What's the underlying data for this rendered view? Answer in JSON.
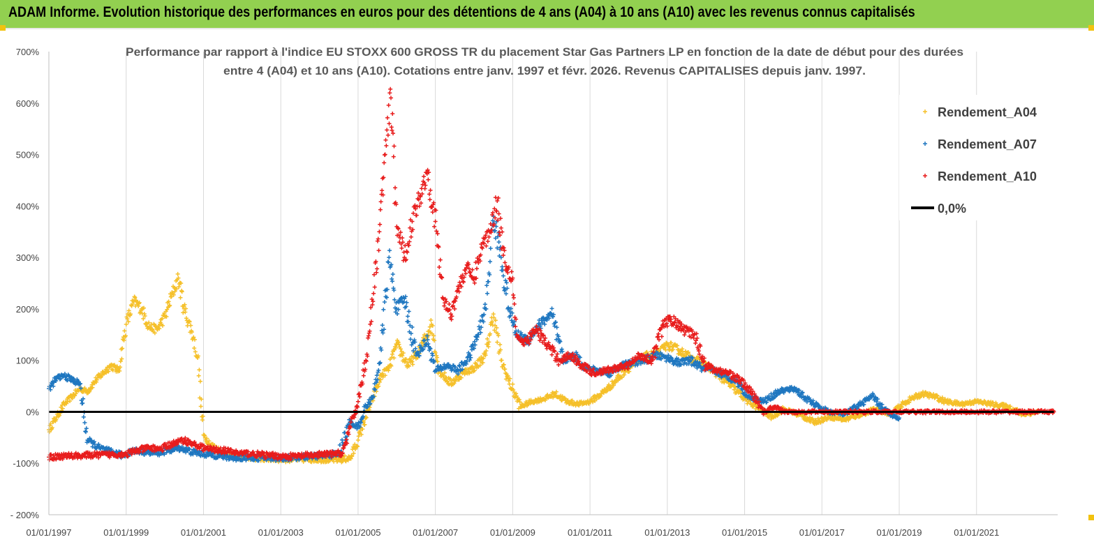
{
  "header": {
    "title": "ADAM Informe. Evolution historique des performances en euros pour des détentions de 4 ans (A04) à 10 ans (A10) avec les revenus connus capitalisés"
  },
  "colors": {
    "banner": "#92d050",
    "A04": "#f5c02a",
    "A07": "#1f77c0",
    "A10": "#e81c1c",
    "zero": "#000000"
  },
  "chart_data": {
    "type": "scatter",
    "title_lines": [
      "Performance par rapport à l'indice EU STOXX 600 GROSS TR  du placement Star Gas Partners LP en fonction de la date de début pour des durées",
      "entre 4 (A04) et 10 ans (A10). Cotations entre janv. 1997 et févr. 2026. Revenus CAPITALISES depuis janv. 1997."
    ],
    "x_tick_labels": [
      "01/01/1997",
      "01/01/1999",
      "01/01/2001",
      "01/01/2003",
      "01/01/2005",
      "01/01/2007",
      "01/01/2009",
      "01/01/2011",
      "01/01/2013",
      "01/01/2015",
      "01/01/2017",
      "01/01/2019",
      "01/01/2021"
    ],
    "x_range": [
      "1997-01-01",
      "2023-02-01"
    ],
    "y_ticks": [
      -200,
      -100,
      0,
      100,
      200,
      300,
      400,
      500,
      600,
      700
    ],
    "y_tick_labels": [
      "- 200%",
      "-100%",
      "0%",
      "100%",
      "200%",
      "300%",
      "400%",
      "500%",
      "600%",
      "700%"
    ],
    "ylim": [
      -200,
      700
    ],
    "grid": "vertical",
    "legend_position": "top-right",
    "legend": [
      "Rendement_A04",
      "Rendement_A07",
      "Rendement_A10",
      "0,0%"
    ],
    "series": [
      {
        "name": "Rendement_A04",
        "marker": "+",
        "points": [
          [
            1997.0,
            -35
          ],
          [
            1997.2,
            -10
          ],
          [
            1997.4,
            15
          ],
          [
            1997.6,
            30
          ],
          [
            1997.8,
            45
          ],
          [
            1998.0,
            40
          ],
          [
            1998.2,
            60
          ],
          [
            1998.4,
            75
          ],
          [
            1998.6,
            90
          ],
          [
            1998.8,
            80
          ],
          [
            1999.0,
            170
          ],
          [
            1999.2,
            215
          ],
          [
            1999.4,
            200
          ],
          [
            1999.6,
            165
          ],
          [
            1999.8,
            160
          ],
          [
            2000.0,
            185
          ],
          [
            2000.2,
            230
          ],
          [
            2000.35,
            260
          ],
          [
            2000.5,
            200
          ],
          [
            2000.7,
            155
          ],
          [
            2000.85,
            105
          ],
          [
            2001.0,
            -45
          ],
          [
            2001.2,
            -65
          ],
          [
            2001.5,
            -80
          ],
          [
            2002.0,
            -88
          ],
          [
            2002.5,
            -90
          ],
          [
            2003.0,
            -92
          ],
          [
            2003.5,
            -92
          ],
          [
            2004.0,
            -92
          ],
          [
            2004.5,
            -93
          ],
          [
            2004.8,
            -90
          ],
          [
            2005.0,
            -55
          ],
          [
            2005.2,
            -10
          ],
          [
            2005.4,
            30
          ],
          [
            2005.6,
            70
          ],
          [
            2005.8,
            85
          ],
          [
            2006.0,
            130
          ],
          [
            2006.3,
            90
          ],
          [
            2006.6,
            120
          ],
          [
            2006.9,
            170
          ],
          [
            2007.1,
            80
          ],
          [
            2007.4,
            55
          ],
          [
            2007.7,
            75
          ],
          [
            2008.0,
            85
          ],
          [
            2008.3,
            110
          ],
          [
            2008.5,
            190
          ],
          [
            2008.7,
            100
          ],
          [
            2008.9,
            60
          ],
          [
            2009.2,
            10
          ],
          [
            2009.5,
            20
          ],
          [
            2009.8,
            25
          ],
          [
            2010.1,
            35
          ],
          [
            2010.4,
            20
          ],
          [
            2010.7,
            15
          ],
          [
            2011.0,
            20
          ],
          [
            2011.3,
            35
          ],
          [
            2011.6,
            55
          ],
          [
            2011.9,
            80
          ],
          [
            2012.2,
            95
          ],
          [
            2012.5,
            110
          ],
          [
            2012.8,
            115
          ],
          [
            2013.0,
            130
          ],
          [
            2013.3,
            120
          ],
          [
            2013.6,
            105
          ],
          [
            2013.9,
            95
          ],
          [
            2014.2,
            80
          ],
          [
            2014.5,
            60
          ],
          [
            2014.8,
            40
          ],
          [
            2015.1,
            20
          ],
          [
            2015.4,
            5
          ],
          [
            2015.7,
            -10
          ],
          [
            2016.0,
            5
          ],
          [
            2016.4,
            -5
          ],
          [
            2016.8,
            -20
          ],
          [
            2017.2,
            -10
          ],
          [
            2017.6,
            -15
          ],
          [
            2018.0,
            -5
          ],
          [
            2018.4,
            5
          ],
          [
            2018.8,
            -5
          ],
          [
            2019.0,
            10
          ],
          [
            2019.3,
            25
          ],
          [
            2019.6,
            35
          ],
          [
            2019.9,
            30
          ],
          [
            2020.2,
            20
          ],
          [
            2020.6,
            15
          ],
          [
            2021.0,
            20
          ],
          [
            2021.4,
            15
          ],
          [
            2021.8,
            10
          ],
          [
            2022.2,
            -5
          ],
          [
            2022.6,
            0
          ]
        ]
      },
      {
        "name": "Rendement_A07",
        "marker": "+",
        "points": [
          [
            1997.0,
            45
          ],
          [
            1997.2,
            65
          ],
          [
            1997.4,
            70
          ],
          [
            1997.6,
            62
          ],
          [
            1997.8,
            55
          ],
          [
            1998.0,
            -55
          ],
          [
            1998.3,
            -70
          ],
          [
            1998.6,
            -78
          ],
          [
            1998.9,
            -85
          ],
          [
            1999.2,
            -75
          ],
          [
            1999.5,
            -78
          ],
          [
            1999.8,
            -80
          ],
          [
            2000.1,
            -75
          ],
          [
            2000.4,
            -70
          ],
          [
            2000.7,
            -78
          ],
          [
            2001.0,
            -82
          ],
          [
            2001.4,
            -85
          ],
          [
            2001.8,
            -90
          ],
          [
            2002.2,
            -88
          ],
          [
            2002.6,
            -90
          ],
          [
            2003.0,
            -90
          ],
          [
            2003.5,
            -88
          ],
          [
            2004.0,
            -86
          ],
          [
            2004.5,
            -82
          ],
          [
            2004.8,
            -20
          ],
          [
            2005.0,
            -30
          ],
          [
            2005.2,
            10
          ],
          [
            2005.4,
            30
          ],
          [
            2005.6,
            120
          ],
          [
            2005.8,
            300
          ],
          [
            2006.0,
            200
          ],
          [
            2006.2,
            220
          ],
          [
            2006.5,
            110
          ],
          [
            2006.8,
            140
          ],
          [
            2007.0,
            80
          ],
          [
            2007.3,
            90
          ],
          [
            2007.6,
            80
          ],
          [
            2007.9,
            110
          ],
          [
            2008.1,
            150
          ],
          [
            2008.3,
            200
          ],
          [
            2008.5,
            380
          ],
          [
            2008.7,
            300
          ],
          [
            2008.9,
            200
          ],
          [
            2009.1,
            150
          ],
          [
            2009.4,
            140
          ],
          [
            2009.7,
            170
          ],
          [
            2010.0,
            190
          ],
          [
            2010.3,
            100
          ],
          [
            2010.6,
            110
          ],
          [
            2010.9,
            85
          ],
          [
            2011.2,
            80
          ],
          [
            2011.5,
            75
          ],
          [
            2011.8,
            90
          ],
          [
            2012.1,
            95
          ],
          [
            2012.4,
            100
          ],
          [
            2012.7,
            110
          ],
          [
            2013.0,
            105
          ],
          [
            2013.3,
            95
          ],
          [
            2013.6,
            100
          ],
          [
            2013.9,
            85
          ],
          [
            2014.2,
            80
          ],
          [
            2014.5,
            70
          ],
          [
            2014.8,
            60
          ],
          [
            2015.1,
            30
          ],
          [
            2015.5,
            20
          ],
          [
            2015.9,
            40
          ],
          [
            2016.3,
            45
          ],
          [
            2016.6,
            25
          ],
          [
            2016.9,
            10
          ],
          [
            2017.2,
            0
          ],
          [
            2017.6,
            -5
          ],
          [
            2018.0,
            15
          ],
          [
            2018.3,
            30
          ],
          [
            2018.6,
            5
          ],
          [
            2018.9,
            -10
          ],
          [
            2019.0,
            -12
          ]
        ]
      },
      {
        "name": "Rendement_A10",
        "marker": "+",
        "points": [
          [
            1997.0,
            -88
          ],
          [
            1997.4,
            -86
          ],
          [
            1997.8,
            -85
          ],
          [
            1998.2,
            -84
          ],
          [
            1998.6,
            -83
          ],
          [
            1999.0,
            -82
          ],
          [
            1999.3,
            -75
          ],
          [
            1999.6,
            -70
          ],
          [
            1999.9,
            -72
          ],
          [
            2000.2,
            -62
          ],
          [
            2000.5,
            -55
          ],
          [
            2000.8,
            -65
          ],
          [
            2001.1,
            -72
          ],
          [
            2001.5,
            -75
          ],
          [
            2001.9,
            -80
          ],
          [
            2002.3,
            -82
          ],
          [
            2002.7,
            -85
          ],
          [
            2003.1,
            -87
          ],
          [
            2003.5,
            -86
          ],
          [
            2003.9,
            -84
          ],
          [
            2004.3,
            -82
          ],
          [
            2004.6,
            -80
          ],
          [
            2004.8,
            -30
          ],
          [
            2005.0,
            20
          ],
          [
            2005.2,
            100
          ],
          [
            2005.4,
            230
          ],
          [
            2005.55,
            350
          ],
          [
            2005.7,
            500
          ],
          [
            2005.85,
            610
          ],
          [
            2006.0,
            360
          ],
          [
            2006.2,
            300
          ],
          [
            2006.4,
            370
          ],
          [
            2006.6,
            420
          ],
          [
            2006.8,
            470
          ],
          [
            2007.0,
            370
          ],
          [
            2007.2,
            220
          ],
          [
            2007.4,
            190
          ],
          [
            2007.6,
            240
          ],
          [
            2007.8,
            280
          ],
          [
            2008.0,
            260
          ],
          [
            2008.2,
            320
          ],
          [
            2008.4,
            350
          ],
          [
            2008.6,
            410
          ],
          [
            2008.8,
            290
          ],
          [
            2009.0,
            260
          ],
          [
            2009.1,
            150
          ],
          [
            2009.3,
            130
          ],
          [
            2009.6,
            160
          ],
          [
            2009.9,
            130
          ],
          [
            2010.2,
            100
          ],
          [
            2010.5,
            110
          ],
          [
            2010.8,
            90
          ],
          [
            2011.1,
            75
          ],
          [
            2011.4,
            80
          ],
          [
            2011.7,
            85
          ],
          [
            2012.0,
            90
          ],
          [
            2012.3,
            110
          ],
          [
            2012.6,
            100
          ],
          [
            2012.9,
            170
          ],
          [
            2013.1,
            180
          ],
          [
            2013.4,
            160
          ],
          [
            2013.7,
            150
          ],
          [
            2014.0,
            90
          ],
          [
            2014.3,
            80
          ],
          [
            2014.6,
            75
          ],
          [
            2014.9,
            60
          ],
          [
            2015.2,
            35
          ],
          [
            2015.5,
            0
          ],
          [
            2015.8,
            10
          ],
          [
            2016.0,
            0
          ],
          [
            2016.5,
            0
          ],
          [
            2017.0,
            0
          ],
          [
            2017.5,
            0
          ],
          [
            2018.0,
            0
          ],
          [
            2018.5,
            0
          ],
          [
            2019.0,
            0
          ],
          [
            2019.5,
            0
          ],
          [
            2020.0,
            0
          ],
          [
            2020.5,
            0
          ],
          [
            2021.0,
            0
          ],
          [
            2021.5,
            0
          ],
          [
            2022.0,
            0
          ],
          [
            2022.5,
            0
          ],
          [
            2023.0,
            0
          ]
        ]
      },
      {
        "name": "0,0%",
        "type": "line",
        "points": [
          [
            1997.0,
            0
          ],
          [
            2023.0,
            0
          ]
        ]
      }
    ]
  }
}
